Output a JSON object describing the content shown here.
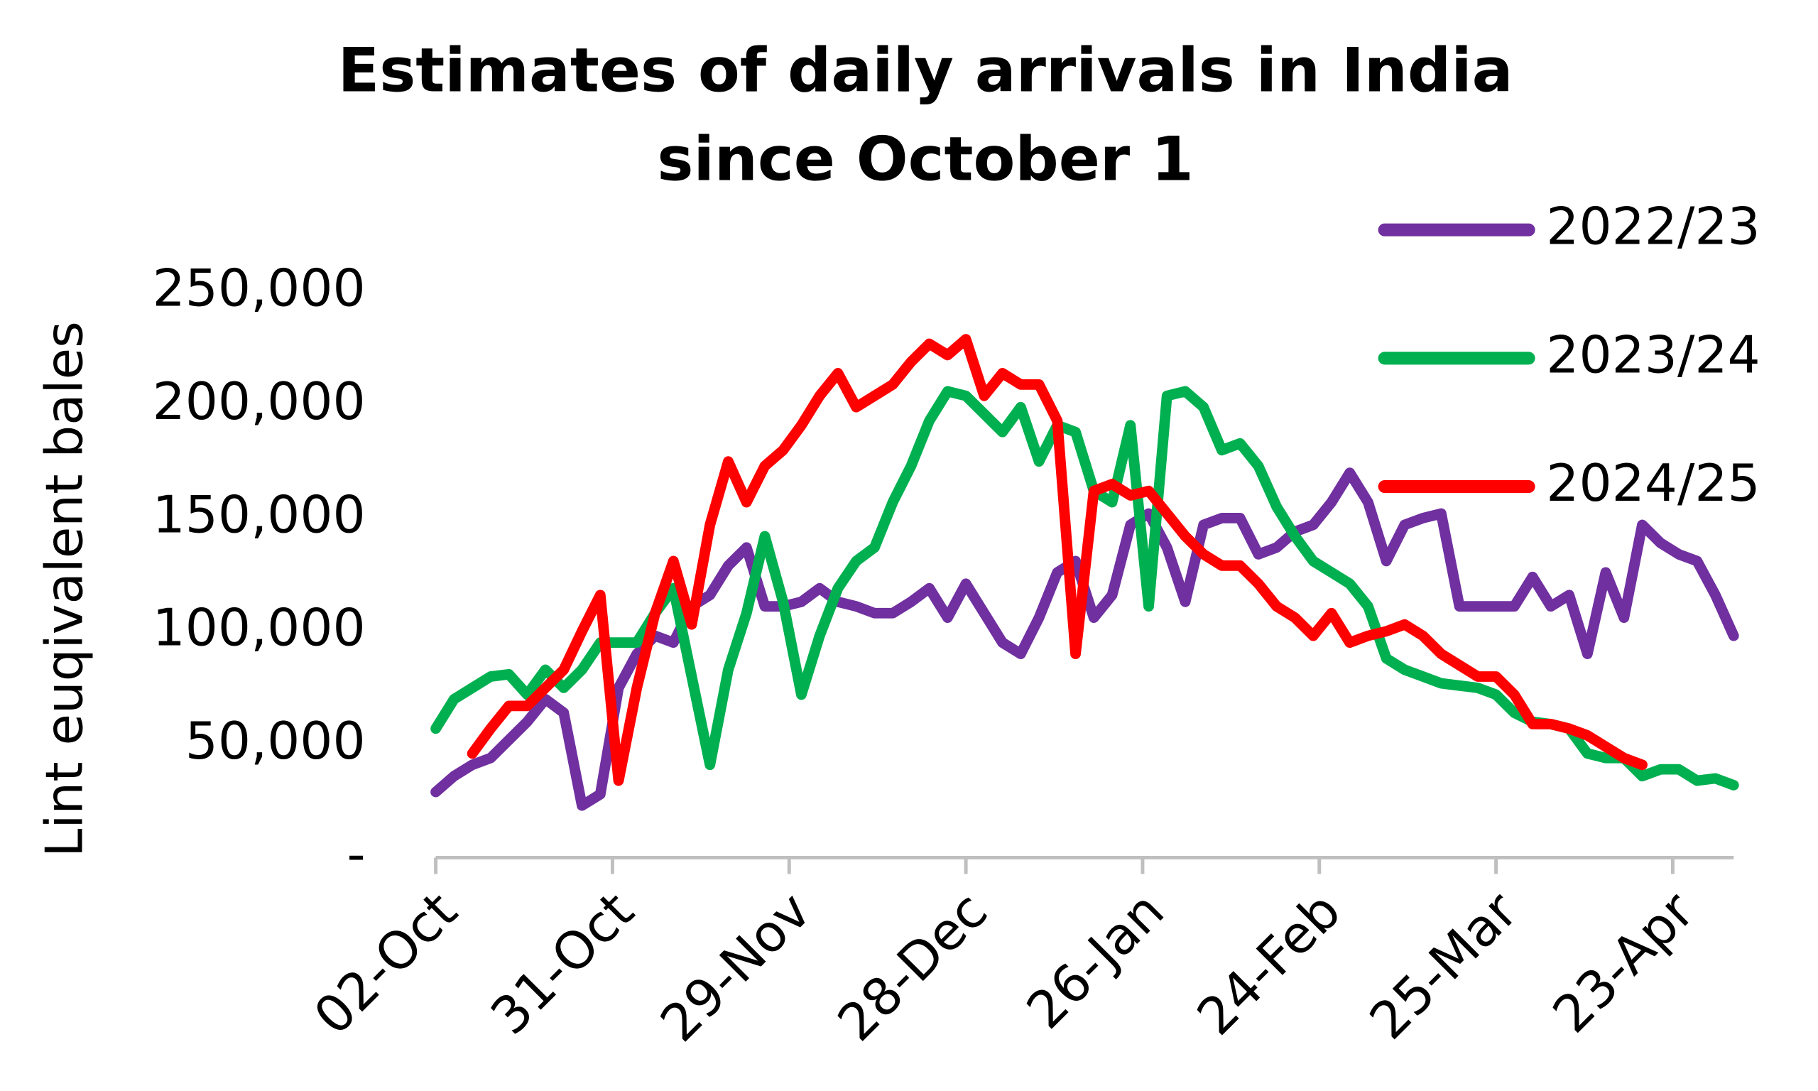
{
  "chart_data": {
    "type": "line",
    "title": [
      "Estimates of daily arrivals in India",
      "since October 1"
    ],
    "y_label": "Lint euqivalent bales",
    "x": [
      0,
      3,
      6,
      9,
      12,
      15,
      18,
      21,
      24,
      27,
      30,
      33,
      36,
      39,
      42,
      45,
      48,
      51,
      54,
      57,
      60,
      63,
      66,
      69,
      72,
      75,
      78,
      81,
      84,
      87,
      90,
      93,
      96,
      99,
      102,
      105,
      108,
      111,
      114,
      117,
      120,
      123,
      126,
      129,
      132,
      135,
      138,
      141,
      144,
      147,
      150,
      153,
      156,
      159,
      162,
      165,
      168,
      171,
      174,
      177,
      180,
      183,
      186,
      189,
      192,
      195,
      198,
      201,
      204,
      207,
      210,
      213
    ],
    "xlim": [
      0,
      213
    ],
    "xticks": [
      {
        "value": 0,
        "label": "02-Oct"
      },
      {
        "value": 29,
        "label": "31-Oct"
      },
      {
        "value": 58,
        "label": "29-Nov"
      },
      {
        "value": 87,
        "label": "28-Dec"
      },
      {
        "value": 116,
        "label": "26-Jan"
      },
      {
        "value": 145,
        "label": "24-Feb"
      },
      {
        "value": 174,
        "label": "25-Mar"
      },
      {
        "value": 203,
        "label": "23-Apr"
      }
    ],
    "ylim": [
      0,
      250000
    ],
    "yticks": [
      {
        "value": 0,
        "label": "-"
      },
      {
        "value": 50000,
        "label": "50,000"
      },
      {
        "value": 100000,
        "label": "100,000"
      },
      {
        "value": 150000,
        "label": "150,000"
      },
      {
        "value": 200000,
        "label": "200,000"
      },
      {
        "value": 250000,
        "label": "250,000"
      }
    ],
    "grid": false,
    "legend": "right",
    "series": [
      {
        "name": "2022/23",
        "color": "#7030a0",
        "values": [
          29000,
          36000,
          41000,
          44000,
          52000,
          60000,
          70000,
          64000,
          23000,
          28000,
          75000,
          90000,
          98000,
          95000,
          111000,
          116000,
          129000,
          137000,
          111000,
          111000,
          113000,
          119000,
          113000,
          111000,
          108000,
          108000,
          113000,
          119000,
          106000,
          121000,
          108000,
          95000,
          90000,
          106000,
          126000,
          131000,
          106000,
          116000,
          147000,
          152000,
          137000,
          113000,
          147000,
          150000,
          150000,
          134000,
          137000,
          144000,
          147000,
          157000,
          170000,
          157000,
          131000,
          147000,
          150000,
          152000,
          111000,
          111000,
          111000,
          111000,
          124000,
          111000,
          116000,
          90000,
          126000,
          106000,
          147000,
          139000,
          134000,
          131000,
          116000,
          98000
        ]
      },
      {
        "name": "2023/24",
        "color": "#00b050",
        "values": [
          57000,
          70000,
          75000,
          80000,
          81000,
          72000,
          83000,
          75000,
          83000,
          95000,
          95000,
          95000,
          108000,
          119000,
          80000,
          41000,
          83000,
          108000,
          142000,
          113000,
          72000,
          98000,
          119000,
          131000,
          137000,
          157000,
          173000,
          193000,
          206000,
          204000,
          196000,
          188000,
          199000,
          175000,
          191000,
          188000,
          162000,
          157000,
          191000,
          111000,
          204000,
          206000,
          199000,
          180000,
          183000,
          173000,
          155000,
          142000,
          131000,
          126000,
          121000,
          111000,
          88000,
          83000,
          80000,
          77000,
          76000,
          75000,
          72000,
          64000,
          60000,
          59000,
          57000,
          46000,
          44000,
          44000,
          36000,
          39000,
          39000,
          34000,
          35000,
          32000
        ]
      },
      {
        "name": "2024/25",
        "color": "#ff0000",
        "values": [
          null,
          null,
          46000,
          57000,
          67000,
          67000,
          75000,
          83000,
          100000,
          116000,
          34000,
          75000,
          108000,
          131000,
          103000,
          147000,
          175000,
          157000,
          173000,
          180000,
          191000,
          204000,
          214000,
          199000,
          204000,
          209000,
          219000,
          227000,
          222000,
          229000,
          204000,
          214000,
          209000,
          209000,
          193000,
          90000,
          162000,
          165000,
          160000,
          162000,
          152000,
          142000,
          134000,
          129000,
          129000,
          121000,
          111000,
          106000,
          98000,
          108000,
          95000,
          98000,
          100000,
          103000,
          98000,
          90000,
          85000,
          80000,
          80000,
          72000,
          59000,
          59000,
          57000,
          54000,
          49000,
          44000,
          41000,
          null,
          null,
          null,
          null,
          null
        ]
      }
    ]
  }
}
